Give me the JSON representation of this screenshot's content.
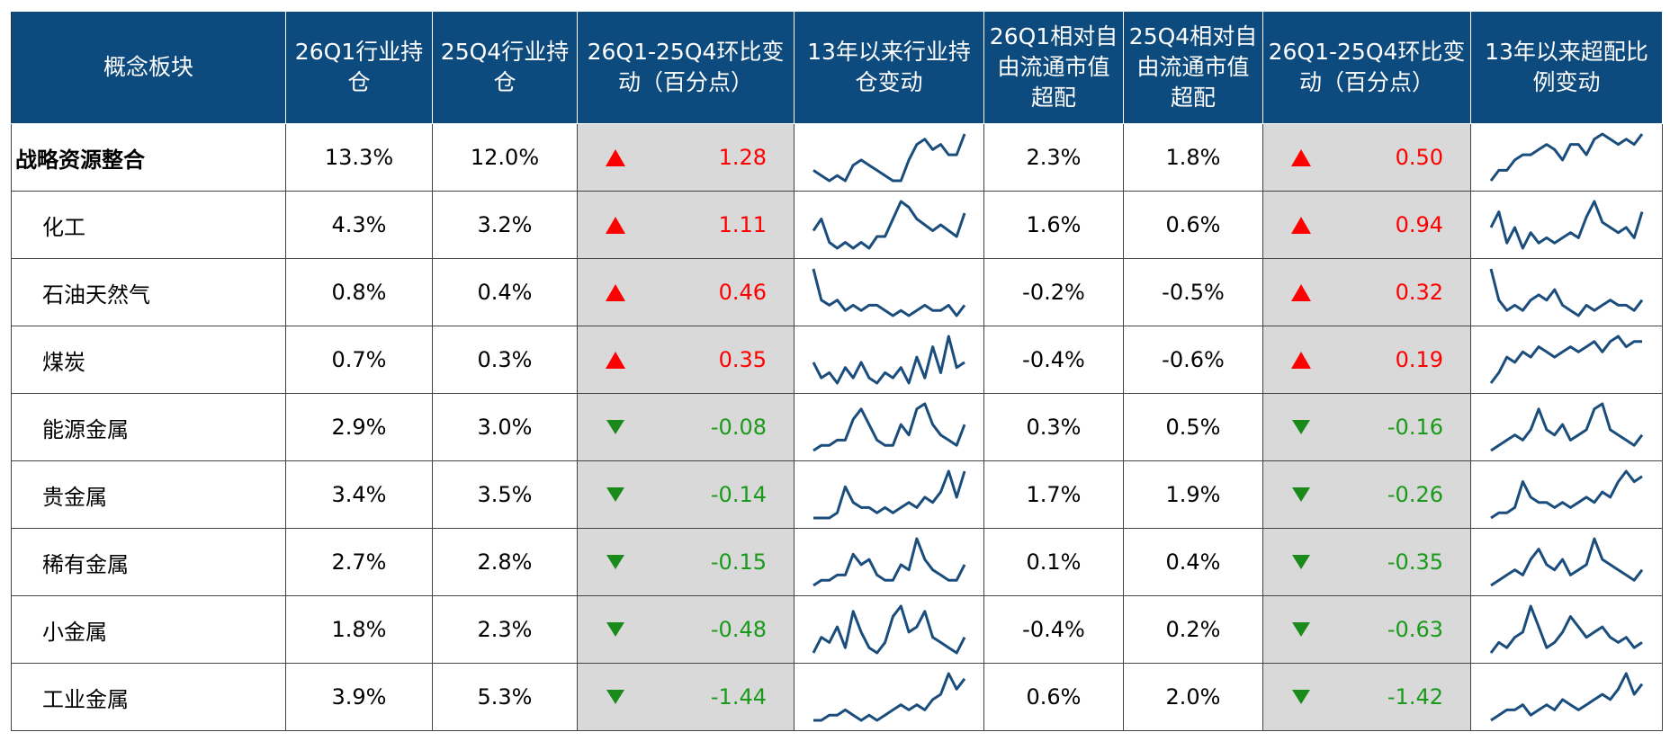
{
  "header": [
    "概念板块",
    "26Q1行业持仓",
    "25Q4行业持仓",
    "26Q1-25Q4环比变动（百分点）",
    "13年以来行业持仓变动",
    "26Q1相对自由流通市值超配",
    "25Q4相对自由流通市值超配",
    "26Q1-25Q4环比变动（百分点）",
    "13年以来超配比例变动"
  ],
  "rows": [
    {
      "name": "战略资源整合",
      "cells": [
        "13.3%",
        "12.0%",
        "1.28",
        "2.3%",
        "1.8%",
        "0.50"
      ],
      "trend": [
        3,
        2,
        1,
        2,
        1,
        4,
        5,
        4,
        3,
        2,
        1,
        1,
        5,
        8,
        9,
        7,
        8,
        6,
        6,
        10
      ],
      "ratio_trend": [
        1,
        3,
        3,
        5,
        6,
        6,
        7,
        8,
        7,
        5,
        8,
        8,
        6,
        9,
        10,
        9,
        8,
        9,
        8,
        10
      ]
    },
    {
      "name": "化工",
      "cells": [
        "4.3%",
        "3.2%",
        "1.11",
        "1.6%",
        "0.6%",
        "0.94"
      ],
      "trend": [
        4,
        6,
        2,
        1,
        2,
        1,
        2,
        1,
        3,
        3,
        6,
        9,
        8,
        6,
        5,
        4,
        5,
        4,
        3,
        7
      ],
      "ratio_trend": [
        5,
        8,
        2,
        5,
        1,
        4,
        2,
        3,
        2,
        3,
        4,
        3,
        7,
        10,
        6,
        5,
        4,
        5,
        3,
        8
      ]
    },
    {
      "name": "石油天然气",
      "cells": [
        "0.8%",
        "0.4%",
        "0.46",
        "-0.2%",
        "-0.5%",
        "0.32"
      ],
      "trend": [
        10,
        4,
        3,
        4,
        2,
        3,
        2,
        3,
        3,
        2,
        1,
        2,
        1,
        2,
        3,
        2,
        2,
        3,
        1,
        3
      ],
      "ratio_trend": [
        10,
        4,
        2,
        3,
        2,
        4,
        5,
        4,
        6,
        3,
        2,
        1,
        3,
        2,
        3,
        4,
        3,
        3,
        2,
        4
      ]
    },
    {
      "name": "煤炭",
      "cells": [
        "0.7%",
        "0.3%",
        "0.35",
        "-0.4%",
        "-0.6%",
        "0.19"
      ],
      "trend": [
        5,
        2,
        3,
        1,
        4,
        2,
        5,
        2,
        1,
        3,
        2,
        4,
        1,
        6,
        2,
        8,
        3,
        10,
        4,
        5
      ],
      "ratio_trend": [
        1,
        3,
        6,
        5,
        7,
        6,
        8,
        7,
        6,
        7,
        8,
        7,
        8,
        9,
        7,
        9,
        10,
        8,
        9,
        9
      ]
    },
    {
      "name": "能源金属",
      "cells": [
        "2.9%",
        "3.0%",
        "-0.08",
        "0.3%",
        "0.5%",
        "-0.16"
      ],
      "trend": [
        1,
        2,
        2,
        3,
        3,
        7,
        9,
        6,
        3,
        2,
        2,
        6,
        4,
        9,
        10,
        6,
        4,
        3,
        2,
        6
      ],
      "ratio_trend": [
        1,
        2,
        3,
        4,
        3,
        5,
        9,
        5,
        4,
        6,
        3,
        4,
        5,
        9,
        10,
        5,
        4,
        3,
        2,
        4
      ]
    },
    {
      "name": "贵金属",
      "cells": [
        "3.4%",
        "3.5%",
        "-0.14",
        "1.7%",
        "1.9%",
        "-0.26"
      ],
      "trend": [
        1,
        1,
        1,
        2,
        7,
        4,
        3,
        3,
        2,
        3,
        2,
        3,
        4,
        3,
        5,
        4,
        6,
        10,
        5,
        10
      ],
      "ratio_trend": [
        1,
        2,
        2,
        3,
        8,
        5,
        4,
        4,
        3,
        4,
        3,
        4,
        5,
        4,
        6,
        5,
        8,
        10,
        8,
        9
      ]
    },
    {
      "name": "稀有金属",
      "cells": [
        "2.7%",
        "2.8%",
        "-0.15",
        "0.1%",
        "0.4%",
        "-0.35"
      ],
      "trend": [
        1,
        2,
        2,
        3,
        3,
        7,
        5,
        6,
        3,
        2,
        2,
        5,
        4,
        10,
        6,
        4,
        3,
        2,
        2,
        5
      ],
      "ratio_trend": [
        1,
        2,
        3,
        4,
        3,
        6,
        8,
        5,
        4,
        6,
        3,
        4,
        5,
        10,
        6,
        5,
        4,
        3,
        2,
        4
      ]
    },
    {
      "name": "小金属",
      "cells": [
        "1.8%",
        "2.3%",
        "-0.48",
        "-0.4%",
        "0.2%",
        "-0.63"
      ],
      "trend": [
        1,
        4,
        3,
        6,
        2,
        9,
        5,
        2,
        1,
        3,
        8,
        10,
        5,
        6,
        9,
        4,
        3,
        2,
        1,
        4
      ],
      "ratio_trend": [
        1,
        3,
        2,
        4,
        5,
        10,
        6,
        2,
        3,
        5,
        8,
        6,
        4,
        5,
        6,
        4,
        3,
        4,
        2,
        3
      ]
    },
    {
      "name": "工业金属",
      "cells": [
        "3.9%",
        "5.3%",
        "-1.44",
        "0.6%",
        "2.0%",
        "-1.42"
      ],
      "trend": [
        1,
        1,
        2,
        2,
        3,
        2,
        1,
        2,
        1,
        2,
        3,
        4,
        3,
        4,
        3,
        5,
        6,
        10,
        7,
        9
      ],
      "ratio_trend": [
        1,
        2,
        3,
        3,
        4,
        2,
        3,
        4,
        3,
        5,
        4,
        3,
        4,
        5,
        6,
        5,
        7,
        10,
        6,
        8
      ]
    }
  ]
}
